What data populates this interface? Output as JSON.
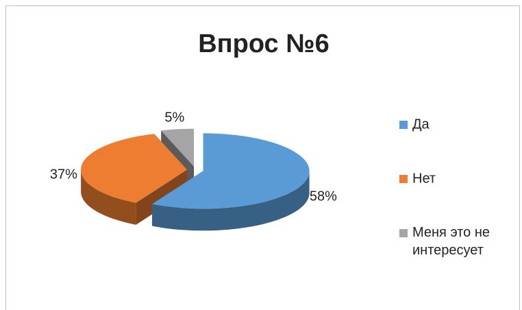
{
  "chart_data": {
    "type": "pie",
    "title": "Впрос №6",
    "categories": [
      "Да",
      "Нет",
      "Меня это не интересует"
    ],
    "values": [
      58,
      37,
      5
    ],
    "value_labels": [
      "58%",
      "37%",
      "5%"
    ],
    "colors": [
      "#5b9bd5",
      "#ed7d31",
      "#a5a5a5"
    ],
    "legend": "right"
  }
}
